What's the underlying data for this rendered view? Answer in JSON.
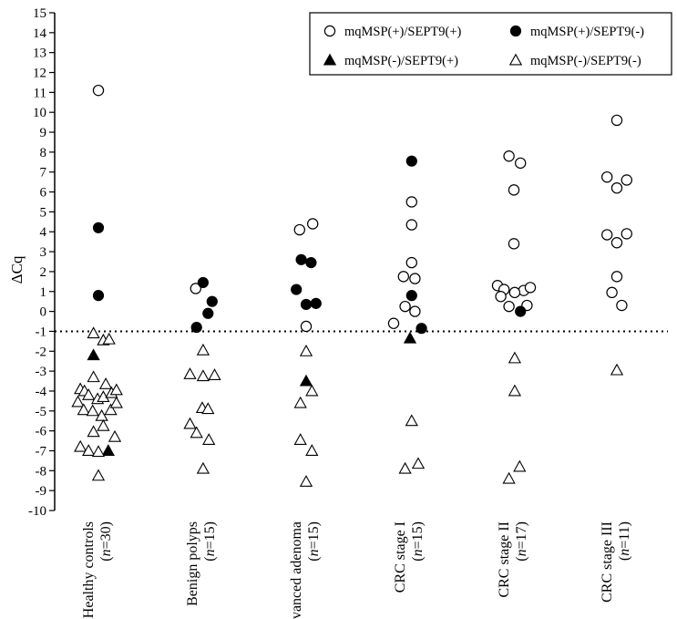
{
  "chart_data": {
    "type": "scatter",
    "title": "",
    "xlabel": "",
    "ylabel": "ΔCq",
    "ylim": [
      -10,
      15
    ],
    "yticks": [
      -10,
      -9,
      -8,
      -7,
      -6,
      -5,
      -4,
      -3,
      -2,
      -1,
      0,
      1,
      2,
      3,
      4,
      5,
      6,
      7,
      8,
      9,
      10,
      11,
      12,
      13,
      14,
      15
    ],
    "threshold": -1,
    "grid": false,
    "legend_position": "top-right",
    "categories": [
      {
        "name": "Healthy controls",
        "n_label": "(n=30)",
        "n_prefix": "(",
        "n_var": "n",
        "n_rest": "=30)"
      },
      {
        "name": "Benign polyps",
        "n_label": "(n=15)",
        "n_prefix": "(",
        "n_var": "n",
        "n_rest": "=15)"
      },
      {
        "name": "Advanced adenoma",
        "n_label": "(n=15)",
        "n_prefix": "(",
        "n_var": "n",
        "n_rest": "=15)"
      },
      {
        "name": "CRC stage I",
        "n_label": "(n=15)",
        "n_prefix": "(",
        "n_var": "n",
        "n_rest": "=15)"
      },
      {
        "name": "CRC stage II",
        "n_label": "(n=17)",
        "n_prefix": "(",
        "n_var": "n",
        "n_rest": "=17)"
      },
      {
        "name": "CRC stage III",
        "n_label": "(n=11)",
        "n_prefix": "(",
        "n_var": "n",
        "n_rest": "=11)"
      }
    ],
    "series": [
      {
        "name": "mqMSP(+)/SEPT9(+)",
        "marker": "open-circle",
        "points": [
          {
            "group": 0,
            "offset": 0,
            "y": 11.1
          },
          {
            "group": 1,
            "offset": -0.4,
            "y": 1.15
          },
          {
            "group": 2,
            "offset": -0.4,
            "y": 4.1
          },
          {
            "group": 2,
            "offset": 0.4,
            "y": 4.4
          },
          {
            "group": 2,
            "offset": 0,
            "y": -0.75
          },
          {
            "group": 3,
            "offset": 0.1,
            "y": 5.5
          },
          {
            "group": 3,
            "offset": 0.1,
            "y": 4.35
          },
          {
            "group": 3,
            "offset": 0.1,
            "y": 2.45
          },
          {
            "group": 3,
            "offset": -0.4,
            "y": 1.75
          },
          {
            "group": 3,
            "offset": 0.3,
            "y": 1.65
          },
          {
            "group": 3,
            "offset": -0.3,
            "y": 0.25
          },
          {
            "group": 3,
            "offset": 0.3,
            "y": 0.0
          },
          {
            "group": 3,
            "offset": -1.0,
            "y": -0.6
          },
          {
            "group": 4,
            "offset": -0.3,
            "y": 7.8
          },
          {
            "group": 4,
            "offset": 0.4,
            "y": 7.45
          },
          {
            "group": 4,
            "offset": 0,
            "y": 6.1
          },
          {
            "group": 4,
            "offset": 0,
            "y": 3.4
          },
          {
            "group": 4,
            "offset": -1.0,
            "y": 1.3
          },
          {
            "group": 4,
            "offset": -0.6,
            "y": 1.1
          },
          {
            "group": 4,
            "offset": 0.6,
            "y": 1.05
          },
          {
            "group": 4,
            "offset": 1.0,
            "y": 1.2
          },
          {
            "group": 4,
            "offset": -0.8,
            "y": 0.75
          },
          {
            "group": 4,
            "offset": 0.05,
            "y": 0.95
          },
          {
            "group": 4,
            "offset": -0.3,
            "y": 0.25
          },
          {
            "group": 4,
            "offset": 0.8,
            "y": 0.3
          },
          {
            "group": 5,
            "offset": 0,
            "y": 9.6
          },
          {
            "group": 5,
            "offset": -0.6,
            "y": 6.75
          },
          {
            "group": 5,
            "offset": 0.6,
            "y": 6.6
          },
          {
            "group": 5,
            "offset": 0,
            "y": 6.2
          },
          {
            "group": 5,
            "offset": -0.6,
            "y": 3.85
          },
          {
            "group": 5,
            "offset": 0,
            "y": 3.45
          },
          {
            "group": 5,
            "offset": 0.6,
            "y": 3.9
          },
          {
            "group": 5,
            "offset": 0,
            "y": 1.75
          },
          {
            "group": 5,
            "offset": -0.3,
            "y": 0.95
          },
          {
            "group": 5,
            "offset": 0.3,
            "y": 0.3
          }
        ]
      },
      {
        "name": "mqMSP(+)/SEPT9(-)",
        "marker": "filled-circle",
        "points": [
          {
            "group": 0,
            "offset": 0,
            "y": 4.2
          },
          {
            "group": 0,
            "offset": 0,
            "y": 0.8
          },
          {
            "group": 1,
            "offset": 0.05,
            "y": 1.45
          },
          {
            "group": 1,
            "offset": 0.6,
            "y": 0.5
          },
          {
            "group": 1,
            "offset": 0.35,
            "y": -0.1
          },
          {
            "group": 1,
            "offset": -0.35,
            "y": -0.8
          },
          {
            "group": 2,
            "offset": -0.3,
            "y": 2.6
          },
          {
            "group": 2,
            "offset": 0.3,
            "y": 2.45
          },
          {
            "group": 2,
            "offset": -0.6,
            "y": 1.1
          },
          {
            "group": 2,
            "offset": 0,
            "y": 0.35
          },
          {
            "group": 2,
            "offset": 0.6,
            "y": 0.4
          },
          {
            "group": 3,
            "offset": 0.1,
            "y": 7.55
          },
          {
            "group": 3,
            "offset": 0.1,
            "y": 0.8
          },
          {
            "group": 3,
            "offset": 0.7,
            "y": -0.85
          },
          {
            "group": 4,
            "offset": 0.4,
            "y": 0.0
          }
        ]
      },
      {
        "name": "mqMSP(-)/SEPT9(+)",
        "marker": "filled-triangle",
        "points": [
          {
            "group": 0,
            "offset": -0.3,
            "y": -2.2
          },
          {
            "group": 0,
            "offset": 0.6,
            "y": -7.0
          },
          {
            "group": 2,
            "offset": 0,
            "y": -3.5
          },
          {
            "group": 3,
            "offset": 0,
            "y": -1.35
          }
        ]
      },
      {
        "name": "mqMSP(-)/SEPT9(-)",
        "marker": "open-triangle",
        "points": [
          {
            "group": 0,
            "offset": -0.3,
            "y": -1.1
          },
          {
            "group": 0,
            "offset": 0.3,
            "y": -1.45
          },
          {
            "group": 0,
            "offset": 0.65,
            "y": -1.4
          },
          {
            "group": 0,
            "offset": -0.3,
            "y": -3.3
          },
          {
            "group": 0,
            "offset": -1.1,
            "y": -3.9
          },
          {
            "group": 0,
            "offset": -0.85,
            "y": -4.0
          },
          {
            "group": 0,
            "offset": -0.6,
            "y": -4.2
          },
          {
            "group": 0,
            "offset": -0.05,
            "y": -4.4
          },
          {
            "group": 0,
            "offset": 0.3,
            "y": -4.3
          },
          {
            "group": 0,
            "offset": 0.45,
            "y": -3.65
          },
          {
            "group": 0,
            "offset": 0.8,
            "y": -4.1
          },
          {
            "group": 0,
            "offset": 1.1,
            "y": -3.95
          },
          {
            "group": 0,
            "offset": -1.25,
            "y": -4.55
          },
          {
            "group": 0,
            "offset": -0.9,
            "y": -4.95
          },
          {
            "group": 0,
            "offset": -0.35,
            "y": -5.0
          },
          {
            "group": 0,
            "offset": 0.2,
            "y": -5.25
          },
          {
            "group": 0,
            "offset": 0.75,
            "y": -4.95
          },
          {
            "group": 0,
            "offset": 1.1,
            "y": -4.6
          },
          {
            "group": 0,
            "offset": -0.3,
            "y": -6.05
          },
          {
            "group": 0,
            "offset": 0.3,
            "y": -5.75
          },
          {
            "group": 0,
            "offset": 1.0,
            "y": -6.3
          },
          {
            "group": 0,
            "offset": -1.1,
            "y": -6.8
          },
          {
            "group": 0,
            "offset": -0.6,
            "y": -7.0
          },
          {
            "group": 0,
            "offset": 0.0,
            "y": -7.05
          },
          {
            "group": 0,
            "offset": 0.0,
            "y": -8.25
          },
          {
            "group": 1,
            "offset": 0.05,
            "y": -1.95
          },
          {
            "group": 1,
            "offset": -0.75,
            "y": -3.15
          },
          {
            "group": 1,
            "offset": 0.05,
            "y": -3.25
          },
          {
            "group": 1,
            "offset": 0.75,
            "y": -3.2
          },
          {
            "group": 1,
            "offset": 0.0,
            "y": -4.85
          },
          {
            "group": 1,
            "offset": 0.35,
            "y": -4.9
          },
          {
            "group": 1,
            "offset": -0.75,
            "y": -5.65
          },
          {
            "group": 1,
            "offset": -0.35,
            "y": -6.1
          },
          {
            "group": 1,
            "offset": 0.4,
            "y": -6.45
          },
          {
            "group": 1,
            "offset": 0.05,
            "y": -7.9
          },
          {
            "group": 2,
            "offset": 0,
            "y": -2.0
          },
          {
            "group": 2,
            "offset": 0.35,
            "y": -4.0
          },
          {
            "group": 2,
            "offset": -0.35,
            "y": -4.6
          },
          {
            "group": 2,
            "offset": -0.35,
            "y": -6.45
          },
          {
            "group": 2,
            "offset": 0.35,
            "y": -7.0
          },
          {
            "group": 2,
            "offset": 0.0,
            "y": -8.55
          },
          {
            "group": 3,
            "offset": 0.1,
            "y": -5.5
          },
          {
            "group": 3,
            "offset": -0.3,
            "y": -7.9
          },
          {
            "group": 3,
            "offset": 0.5,
            "y": -7.65
          },
          {
            "group": 4,
            "offset": 0.05,
            "y": -2.35
          },
          {
            "group": 4,
            "offset": 0.05,
            "y": -4.0
          },
          {
            "group": 4,
            "offset": -0.3,
            "y": -8.4
          },
          {
            "group": 4,
            "offset": 0.35,
            "y": -7.8
          },
          {
            "group": 5,
            "offset": 0,
            "y": -2.95
          }
        ]
      }
    ]
  },
  "colors": {
    "axis": "#000000",
    "marker": "#000000",
    "background": "#ffffff"
  }
}
